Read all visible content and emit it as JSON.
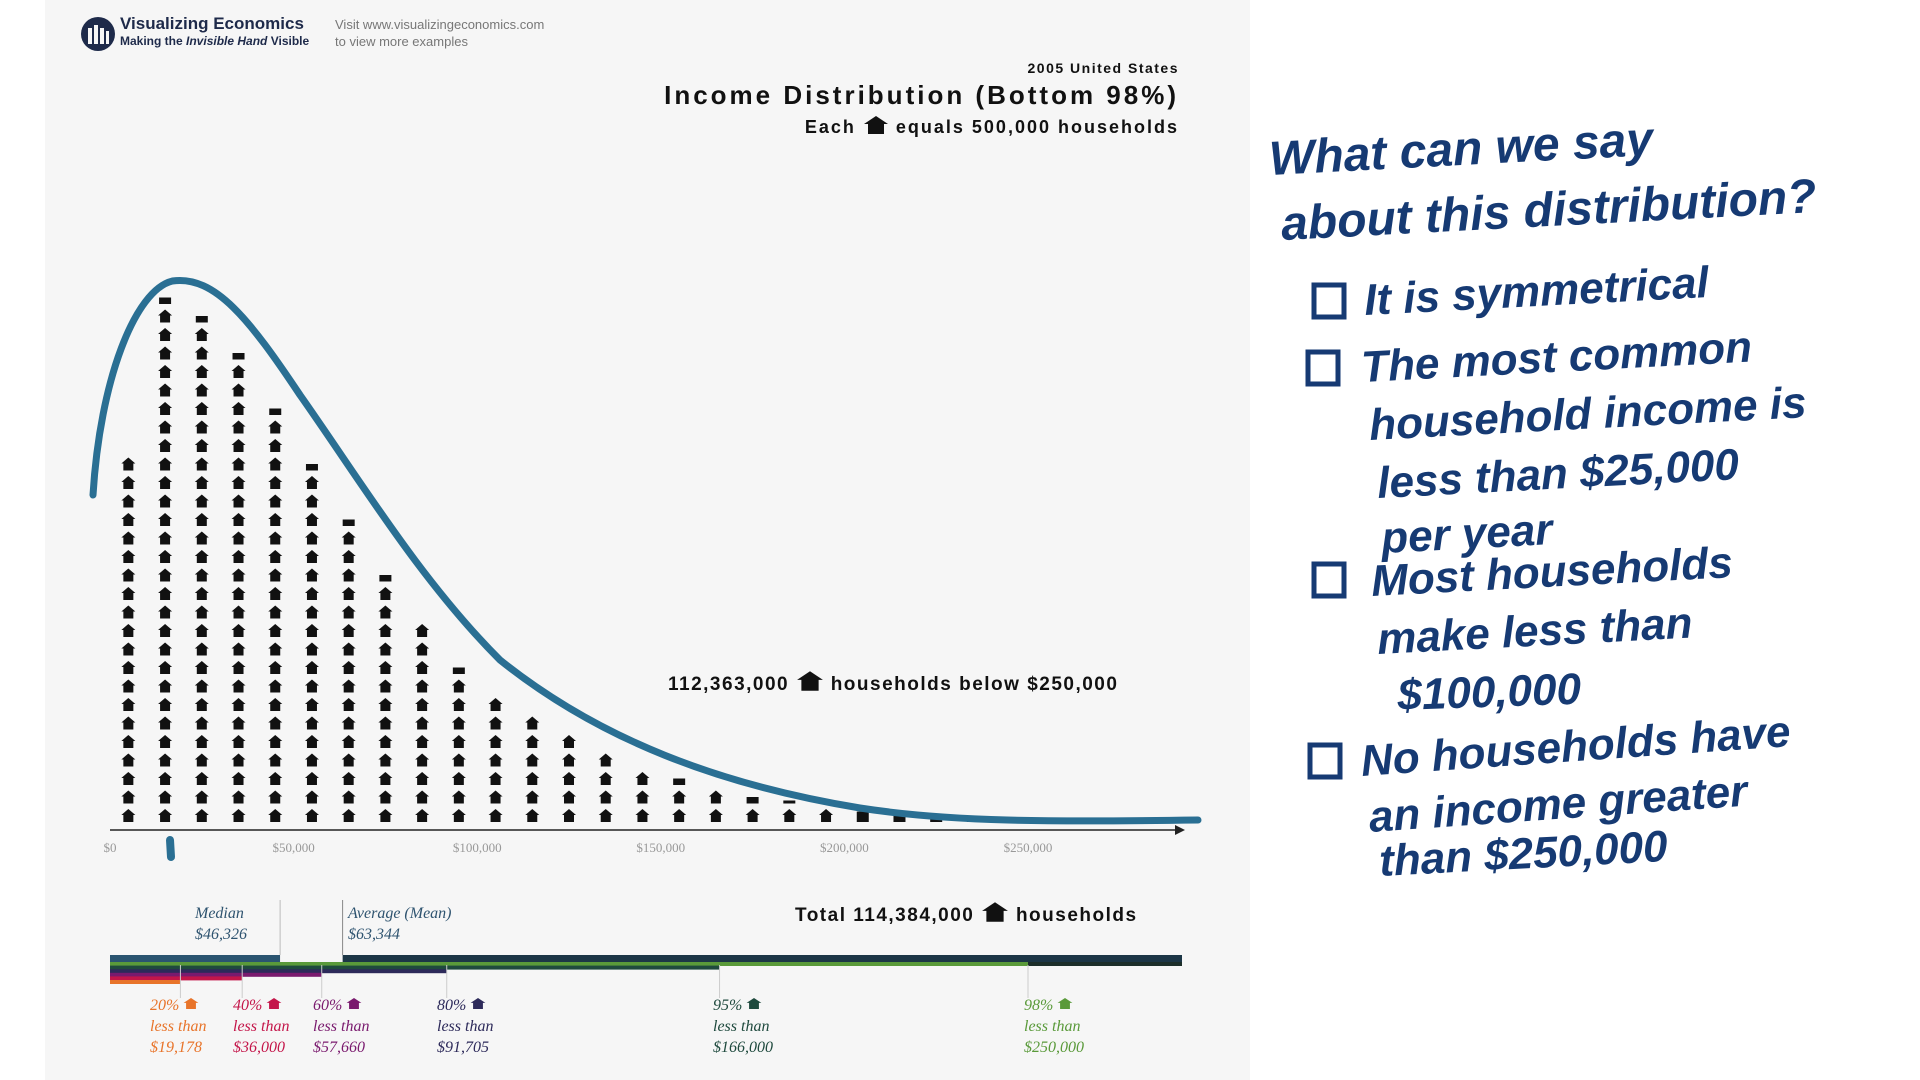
{
  "brand": {
    "name": "Visualizing Economics",
    "tagline_pre": "Making the ",
    "tagline_em": "Invisible Hand",
    "tagline_post": " Visible",
    "visit_line1": "Visit www.visualizingeconomics.com",
    "visit_line2": "to view more examples"
  },
  "header": {
    "year": "2005 United States",
    "title": "Income Distribution (Bottom 98%)",
    "each": "Each",
    "equals": "equals 500,000 households"
  },
  "labels": {
    "below_count": "112,363,000",
    "below_text": "households below $250,000",
    "total_pre": "Total 114,384,000",
    "total_post": "households"
  },
  "stats": {
    "median_label": "Median",
    "median_value": "$46,326",
    "mean_label": "Average (Mean)",
    "mean_value": "$63,344"
  },
  "percentiles": [
    {
      "pct": "20%",
      "text": "less than",
      "value": "$19,178",
      "color": "#e8742a"
    },
    {
      "pct": "40%",
      "text": "less than",
      "value": "$36,000",
      "color": "#c4164a"
    },
    {
      "pct": "60%",
      "text": "less than",
      "value": "$57,660",
      "color": "#7a1a6e"
    },
    {
      "pct": "80%",
      "text": "less than",
      "value": "$91,705",
      "color": "#2d2a5a"
    },
    {
      "pct": "95%",
      "text": "less than",
      "value": "$166,000",
      "color": "#1f4a3e"
    },
    {
      "pct": "98%",
      "text": "less than",
      "value": "$250,000",
      "color": "#5a9a3a"
    }
  ],
  "colors": {
    "curve": "#2a6f93",
    "houses": "#111111",
    "median_bar": "#2a5470",
    "mean_bar": "#1c3646",
    "ink": "#163a73"
  },
  "chart_data": {
    "type": "bar",
    "unit": "houses (1 house = 500,000 households)",
    "x": [
      5000,
      15000,
      25000,
      35000,
      45000,
      55000,
      65000,
      75000,
      85000,
      95000,
      105000,
      115000,
      125000,
      135000,
      145000,
      155000,
      165000,
      175000,
      185000,
      195000,
      205000,
      215000,
      225000,
      235000,
      245000
    ],
    "values": [
      20,
      28.5,
      27.5,
      25.5,
      22.5,
      19.5,
      16.5,
      13.5,
      11,
      8.5,
      7,
      6,
      5,
      4,
      3,
      2.5,
      2,
      1.5,
      1.2,
      1,
      0.8,
      0.6,
      0.5,
      0.4,
      0.3
    ],
    "x_ticks": [
      "$0",
      "$50,000",
      "$100,000",
      "$150,000",
      "$200,000",
      "$250,000"
    ],
    "x_tick_values": [
      0,
      50000,
      100000,
      150000,
      200000,
      250000
    ],
    "xlim": [
      0,
      290000
    ],
    "median": 46326,
    "mean": 63344,
    "percentile_values": [
      19178,
      36000,
      57660,
      91705,
      166000,
      250000
    ],
    "grid": false
  },
  "notes": {
    "question_line1": "What can we say",
    "question_line2": "about this distribution?",
    "option1": [
      "It is symmetrical"
    ],
    "option2": [
      "The most common",
      "household income is",
      "less than $25,000",
      "per year"
    ],
    "option3": [
      "Most households",
      "make less than",
      "$100,000"
    ],
    "option4": [
      "No households have",
      "an income greater",
      "than $250,000"
    ]
  }
}
